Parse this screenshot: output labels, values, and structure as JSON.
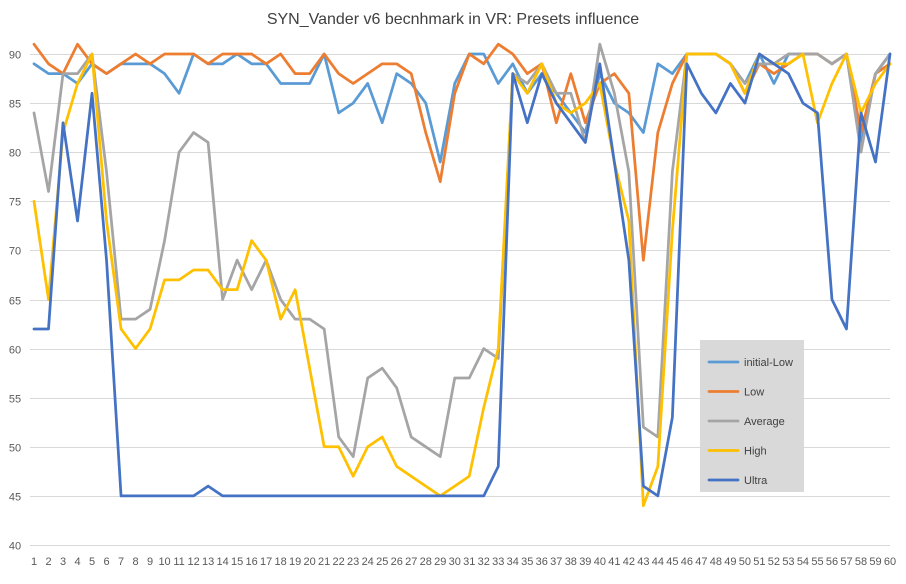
{
  "chart_data": {
    "type": "line",
    "title": "SYN_Vander v6 becnhmark in VR: Presets influence",
    "xlabel": "",
    "ylabel": "",
    "ylim": [
      40,
      90
    ],
    "yticks": [
      40,
      45,
      50,
      55,
      60,
      65,
      70,
      75,
      80,
      85,
      90
    ],
    "grid": true,
    "legend_position": "inside-bottom-right",
    "categories": [
      1,
      2,
      3,
      4,
      5,
      6,
      7,
      8,
      9,
      10,
      11,
      12,
      13,
      14,
      15,
      16,
      17,
      18,
      19,
      20,
      21,
      22,
      23,
      24,
      25,
      26,
      27,
      28,
      29,
      30,
      31,
      32,
      33,
      34,
      35,
      36,
      37,
      38,
      39,
      40,
      41,
      42,
      43,
      44,
      45,
      46,
      47,
      48,
      49,
      50,
      51,
      52,
      53,
      54,
      55,
      56,
      57,
      58,
      59,
      60
    ],
    "series": [
      {
        "name": "initial-Low",
        "color": "#5b9bd5",
        "values": [
          89,
          88,
          88,
          87,
          89,
          88,
          89,
          89,
          89,
          88,
          86,
          90,
          89,
          89,
          90,
          89,
          89,
          87,
          87,
          87,
          90,
          84,
          85,
          87,
          83,
          88,
          87,
          85,
          79,
          87,
          90,
          90,
          87,
          89,
          86,
          88,
          86,
          84,
          82,
          88,
          85,
          84,
          82,
          89,
          88,
          90,
          90,
          90,
          89,
          87,
          90,
          87,
          90,
          90,
          90,
          89,
          90,
          81,
          88,
          90
        ]
      },
      {
        "name": "Low",
        "color": "#ed7d31",
        "values": [
          91,
          89,
          88,
          91,
          89,
          88,
          89,
          90,
          89,
          90,
          90,
          90,
          89,
          90,
          90,
          90,
          89,
          90,
          88,
          88,
          90,
          88,
          87,
          88,
          89,
          89,
          88,
          82,
          77,
          86,
          90,
          89,
          91,
          90,
          88,
          89,
          83,
          88,
          83,
          87,
          88,
          86,
          69,
          82,
          87,
          90,
          90,
          90,
          89,
          86,
          89,
          88,
          89,
          90,
          90,
          89,
          90,
          82,
          88,
          89
        ]
      },
      {
        "name": "Average",
        "color": "#a5a5a5",
        "values": [
          84,
          76,
          88,
          88,
          90,
          78,
          63,
          63,
          64,
          71,
          80,
          82,
          81,
          65,
          69,
          66,
          69,
          65,
          63,
          63,
          62,
          51,
          49,
          57,
          58,
          56,
          51,
          50,
          49,
          57,
          57,
          60,
          59,
          88,
          87,
          89,
          86,
          86,
          81,
          91,
          86,
          78,
          52,
          51,
          78,
          90,
          90,
          90,
          89,
          87,
          89,
          89,
          90,
          90,
          90,
          89,
          90,
          80,
          88,
          90
        ]
      },
      {
        "name": "High",
        "color": "#ffc000",
        "values": [
          75,
          65,
          82,
          87,
          90,
          73,
          62,
          60,
          62,
          67,
          67,
          68,
          68,
          66,
          66,
          71,
          69,
          63,
          66,
          58,
          50,
          50,
          47,
          50,
          51,
          48,
          47,
          46,
          45,
          46,
          47,
          54,
          60,
          88,
          86,
          89,
          85,
          84,
          85,
          87,
          79,
          73,
          44,
          48,
          72,
          90,
          90,
          90,
          89,
          86,
          90,
          89,
          89,
          90,
          83,
          87,
          90,
          84,
          87,
          89
        ]
      },
      {
        "name": "Ultra",
        "color": "#4472c4",
        "values": [
          62,
          62,
          83,
          73,
          86,
          69,
          45,
          45,
          45,
          45,
          45,
          45,
          46,
          45,
          45,
          45,
          45,
          45,
          45,
          45,
          45,
          45,
          45,
          45,
          45,
          45,
          45,
          45,
          45,
          45,
          45,
          45,
          48,
          88,
          83,
          88,
          85,
          83,
          81,
          89,
          79,
          69,
          46,
          45,
          53,
          89,
          86,
          84,
          87,
          85,
          90,
          89,
          88,
          85,
          84,
          65,
          62,
          84,
          79,
          90
        ]
      }
    ]
  }
}
